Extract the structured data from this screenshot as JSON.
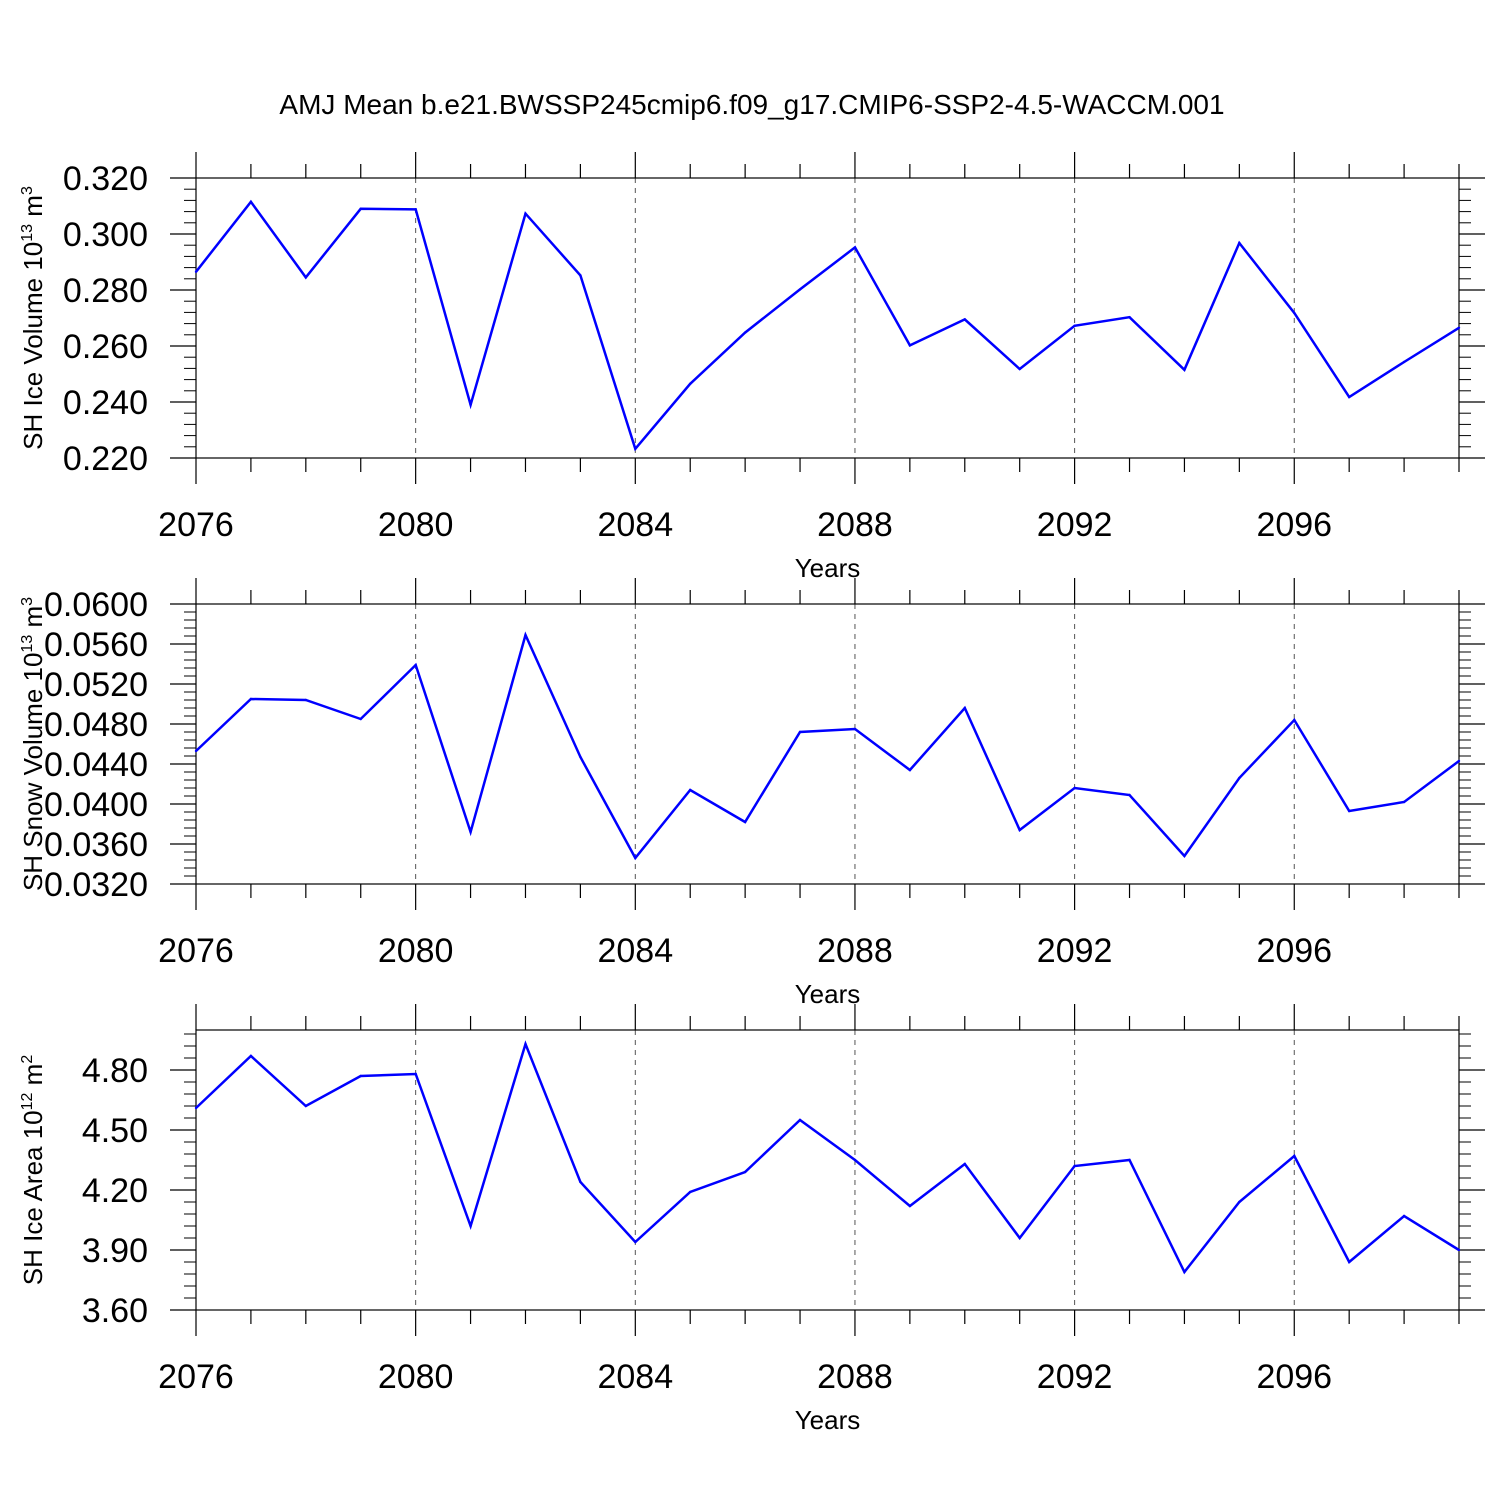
{
  "title": "AMJ Mean b.e21.BWSSP245cmip6.f09_g17.CMIP6-SSP2-4.5-WACCM.001",
  "colors": {
    "line": "#0000ff",
    "axes": "#000000",
    "grid": "#000000"
  },
  "chart_data": [
    {
      "type": "line",
      "ylabel": {
        "prefix": "SH Ice Volume 10",
        "exponent": "13",
        "unit": " m",
        "unit_exponent": "3"
      },
      "xlabel": "Years",
      "xlim": [
        2076,
        2099
      ],
      "ylim": [
        0.22,
        0.32
      ],
      "yticks": [
        0.22,
        0.24,
        0.26,
        0.28,
        0.3,
        0.32
      ],
      "ytick_labels": [
        "0.220",
        "0.240",
        "0.260",
        "0.280",
        "0.300",
        "0.320"
      ],
      "xticks": [
        2076,
        2080,
        2084,
        2088,
        2092,
        2096
      ],
      "xtick_labels": [
        "2076",
        "2080",
        "2084",
        "2088",
        "2092",
        "2096"
      ],
      "grid": "vertical dashed at major x ticks",
      "x": [
        2076,
        2077,
        2078,
        2079,
        2080,
        2081,
        2082,
        2083,
        2084,
        2085,
        2086,
        2087,
        2088,
        2089,
        2090,
        2091,
        2092,
        2093,
        2094,
        2095,
        2096,
        2097,
        2098,
        2099
      ],
      "series": [
        {
          "values": [
            0.2865,
            0.3115,
            0.2845,
            0.309,
            0.3088,
            0.239,
            0.3073,
            0.2852,
            0.2233,
            0.2465,
            0.2648,
            0.2802,
            0.2952,
            0.2602,
            0.2695,
            0.2518,
            0.2672,
            0.2703,
            0.2515,
            0.2968,
            0.2718,
            0.2418,
            0.2543,
            0.2665
          ]
        }
      ]
    },
    {
      "type": "line",
      "ylabel": {
        "prefix": "SH Snow Volume 10",
        "exponent": "13",
        "unit": " m",
        "unit_exponent": "3"
      },
      "xlabel": "Years",
      "xlim": [
        2076,
        2099
      ],
      "ylim": [
        0.032,
        0.06
      ],
      "yticks": [
        0.032,
        0.036,
        0.04,
        0.044,
        0.048,
        0.052,
        0.056,
        0.06
      ],
      "ytick_labels": [
        "0.0320",
        "0.0360",
        "0.0400",
        "0.0440",
        "0.0480",
        "0.0520",
        "0.0560",
        "0.0600"
      ],
      "xticks": [
        2076,
        2080,
        2084,
        2088,
        2092,
        2096
      ],
      "xtick_labels": [
        "2076",
        "2080",
        "2084",
        "2088",
        "2092",
        "2096"
      ],
      "grid": "vertical dashed at major x ticks",
      "x": [
        2076,
        2077,
        2078,
        2079,
        2080,
        2081,
        2082,
        2083,
        2084,
        2085,
        2086,
        2087,
        2088,
        2089,
        2090,
        2091,
        2092,
        2093,
        2094,
        2095,
        2096,
        2097,
        2098,
        2099
      ],
      "series": [
        {
          "values": [
            0.0453,
            0.0505,
            0.0504,
            0.0485,
            0.0539,
            0.0372,
            0.0569,
            0.0447,
            0.0346,
            0.0414,
            0.0382,
            0.0472,
            0.0475,
            0.0434,
            0.0496,
            0.0374,
            0.0416,
            0.0409,
            0.0348,
            0.0426,
            0.0484,
            0.0393,
            0.0402,
            0.0443
          ]
        }
      ]
    },
    {
      "type": "line",
      "ylabel": {
        "prefix": "SH Ice Area 10",
        "exponent": "12",
        "unit": " m",
        "unit_exponent": "2"
      },
      "xlabel": "Years",
      "xlim": [
        2076,
        2099
      ],
      "ylim": [
        3.6,
        5.0
      ],
      "yticks": [
        3.6,
        3.9,
        4.2,
        4.5,
        4.8
      ],
      "ytick_labels": [
        "3.60",
        "3.90",
        "4.20",
        "4.50",
        "4.80"
      ],
      "xticks": [
        2076,
        2080,
        2084,
        2088,
        2092,
        2096
      ],
      "xtick_labels": [
        "2076",
        "2080",
        "2084",
        "2088",
        "2092",
        "2096"
      ],
      "grid": "vertical dashed at major x ticks",
      "x": [
        2076,
        2077,
        2078,
        2079,
        2080,
        2081,
        2082,
        2083,
        2084,
        2085,
        2086,
        2087,
        2088,
        2089,
        2090,
        2091,
        2092,
        2093,
        2094,
        2095,
        2096,
        2097,
        2098,
        2099
      ],
      "series": [
        {
          "values": [
            4.61,
            4.87,
            4.62,
            4.77,
            4.78,
            4.02,
            4.93,
            4.24,
            3.94,
            4.19,
            4.29,
            4.55,
            4.35,
            4.12,
            4.33,
            3.96,
            4.32,
            4.35,
            3.79,
            4.14,
            4.37,
            3.84,
            4.07,
            3.9
          ]
        }
      ]
    }
  ]
}
